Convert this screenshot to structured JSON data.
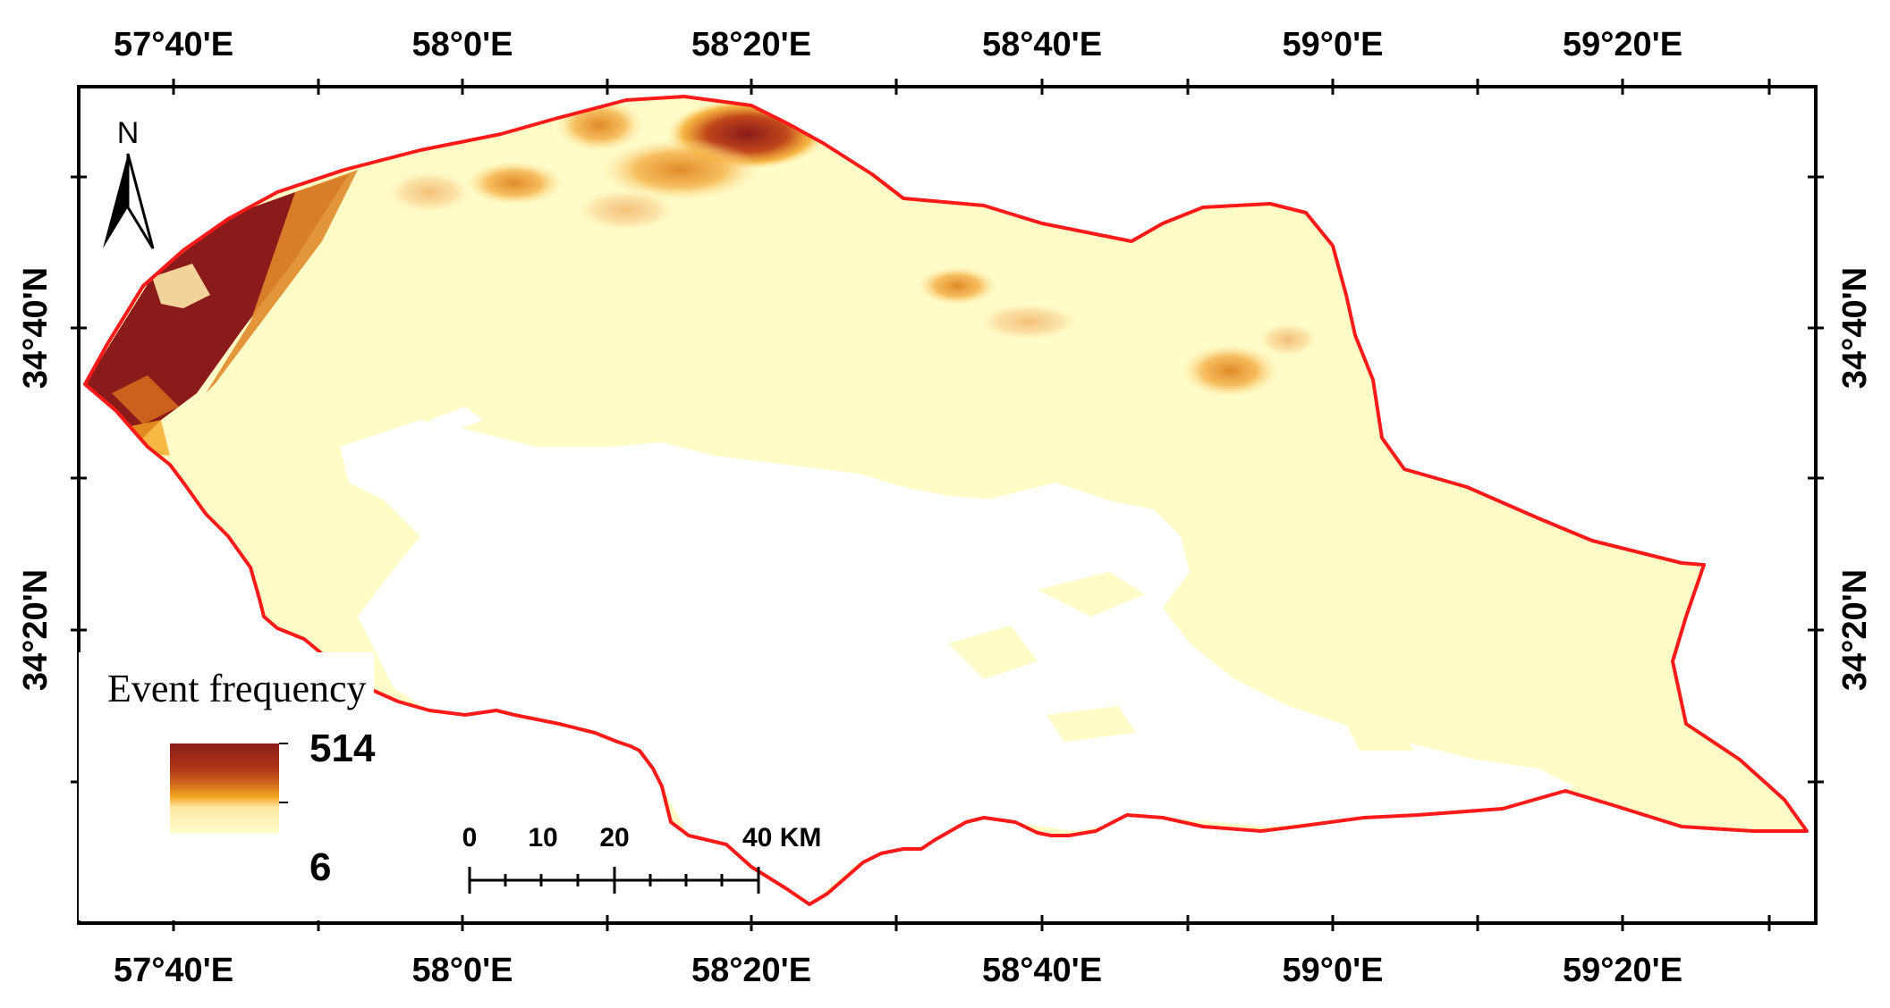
{
  "map": {
    "top_ticks": [
      "57°40'E",
      "58°0'E",
      "58°20'E",
      "58°40'E",
      "59°0'E",
      "59°20'E"
    ],
    "bottom_ticks": [
      "57°40'E",
      "58°0'E",
      "58°20'E",
      "58°40'E",
      "59°0'E",
      "59°20'E"
    ],
    "left_ticks": [
      "34°40'N",
      "34°20'N"
    ],
    "right_ticks": [
      "34°40'N",
      "34°20'N"
    ],
    "north_label": "N",
    "legend": {
      "title": "Event frequency",
      "max_label": "514",
      "min_label": "6",
      "max_value": 514,
      "min_value": 6,
      "colors": [
        "#8b1a1a",
        "#d2691e",
        "#f5a623",
        "#fde8a8",
        "#fffcc8"
      ]
    },
    "scale_bar": {
      "labels": [
        "0",
        "10",
        "20",
        "40 KM"
      ],
      "unit": "KM"
    },
    "colors": {
      "boundary": "#ff1a1a",
      "base_fill": "#fffcc8",
      "low_data": "#ffffff",
      "frame": "#000000"
    }
  }
}
